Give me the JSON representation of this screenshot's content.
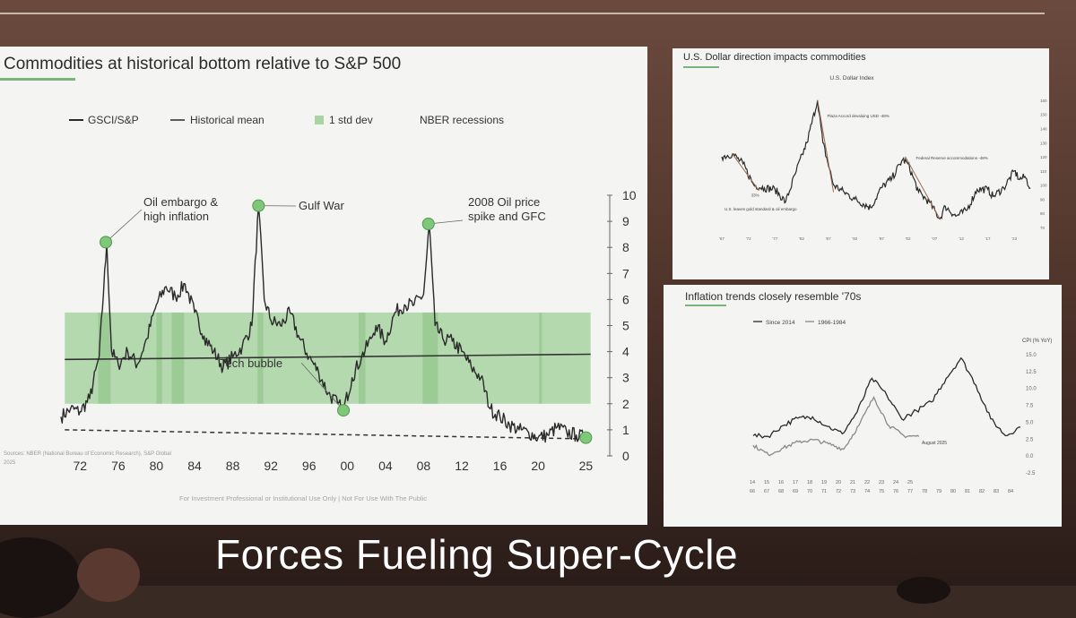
{
  "slide": {
    "caption": "Forces Fueling Super-Cycle"
  },
  "colors": {
    "green_band": "#a9d4a3",
    "marker_green": "#7fc77a",
    "line": "#2a2a2a",
    "accent": "#7bb47a"
  },
  "main_chart": {
    "title": "Commodities at historical bottom relative to S&P 500",
    "footnote_source": "Sources: NBER (National Bureau of Economic Research), S&P Global",
    "footnote_date": "2025",
    "disclaimer": "For Investment Professional or Institutional Use Only | Not For Use With The Public",
    "legend": [
      "GSCI/S&P",
      "Historical mean",
      "1 std dev",
      "NBER recessions"
    ],
    "annotations": [
      {
        "text": "Oil embargo &\nhigh inflation",
        "x": 1974.7,
        "y": 8.2
      },
      {
        "text": "Gulf War",
        "x": 1990.7,
        "y": 9.6
      },
      {
        "text": "2008 Oil price\nspike and GFC",
        "x": 2008.5,
        "y": 8.9
      },
      {
        "text": "Tech bubble",
        "x": 1999.6,
        "y": 1.75
      }
    ],
    "x_ticks": [
      "72",
      "76",
      "80",
      "84",
      "88",
      "92",
      "96",
      "00",
      "04",
      "08",
      "12",
      "16",
      "20",
      "25"
    ],
    "y_ticks": [
      "0",
      "1",
      "2",
      "3",
      "4",
      "5",
      "6",
      "7",
      "8",
      "9",
      "10"
    ]
  },
  "usd_chart": {
    "title": "U.S. Dollar direction impacts commodities",
    "subtitle": "U.S. Dollar Index",
    "annotations": [
      "Plaza Accord devaluing USD -48%",
      "Federal Reserve accommodations -48%",
      "U.S. leaves gold standard & oil embargo",
      "33%"
    ],
    "y_ticks": [
      "160",
      "150",
      "140",
      "130",
      "120",
      "110",
      "100",
      "90",
      "80",
      "70"
    ],
    "x_ticks": [
      "'67",
      "'72",
      "'77",
      "'82",
      "'87",
      "'92",
      "'97",
      "'02",
      "'07",
      "'12",
      "'17",
      "'22"
    ]
  },
  "inflation_chart": {
    "title": "Inflation trends closely resemble '70s",
    "legend": [
      "Since 2014",
      "1966-1984"
    ],
    "y_axis_title": "CPI (% YoY)",
    "y_ticks": [
      "15.0",
      "12.5",
      "10.0",
      "7.5",
      "5.0",
      "2.5",
      "0.0",
      "-2.5"
    ],
    "x_ticks_top": [
      "14",
      "15",
      "16",
      "17",
      "18",
      "19",
      "20",
      "21",
      "22",
      "23",
      "24",
      "25"
    ],
    "x_ticks_bottom": [
      "66",
      "67",
      "68",
      "69",
      "70",
      "71",
      "72",
      "73",
      "74",
      "75",
      "76",
      "77",
      "78",
      "79",
      "80",
      "81",
      "82",
      "83",
      "84"
    ],
    "annotation": "August 2025"
  },
  "chart_data": [
    {
      "type": "line",
      "title": "Commodities at historical bottom relative to S&P 500",
      "series": [
        {
          "name": "GSCI/S&P",
          "points": [
            [
              1970,
              1.5
            ],
            [
              1971,
              1.8
            ],
            [
              1972,
              1.7
            ],
            [
              1973,
              2.2
            ],
            [
              1974,
              3.8
            ],
            [
              1974.8,
              8.2
            ],
            [
              1975.3,
              4.0
            ],
            [
              1976,
              3.5
            ],
            [
              1977,
              4.0
            ],
            [
              1978,
              3.5
            ],
            [
              1979,
              4.5
            ],
            [
              1980,
              5.8
            ],
            [
              1981,
              6.5
            ],
            [
              1982,
              6.1
            ],
            [
              1983,
              6.6
            ],
            [
              1984,
              5.5
            ],
            [
              1985,
              4.6
            ],
            [
              1986,
              4.0
            ],
            [
              1987,
              3.4
            ],
            [
              1988,
              3.8
            ],
            [
              1989,
              4.2
            ],
            [
              1990,
              5.0
            ],
            [
              1990.7,
              9.6
            ],
            [
              1991.3,
              6.0
            ],
            [
              1992,
              5.2
            ],
            [
              1993,
              5.0
            ],
            [
              1994,
              5.5
            ],
            [
              1995,
              4.5
            ],
            [
              1996,
              3.8
            ],
            [
              1997,
              3.2
            ],
            [
              1998,
              2.4
            ],
            [
              1999,
              2.0
            ],
            [
              1999.6,
              1.75
            ],
            [
              2000.5,
              3.0
            ],
            [
              2001.5,
              3.8
            ],
            [
              2002.5,
              4.5
            ],
            [
              2003,
              5.0
            ],
            [
              2004,
              4.4
            ],
            [
              2005,
              5.5
            ],
            [
              2006,
              5.8
            ],
            [
              2007,
              5.8
            ],
            [
              2008,
              6.2
            ],
            [
              2008.6,
              8.9
            ],
            [
              2009.2,
              5.0
            ],
            [
              2010,
              4.5
            ],
            [
              2011,
              4.4
            ],
            [
              2012,
              4.0
            ],
            [
              2013,
              3.4
            ],
            [
              2014,
              3.0
            ],
            [
              2015,
              1.8
            ],
            [
              2016,
              1.5
            ],
            [
              2017,
              1.2
            ],
            [
              2018,
              1.0
            ],
            [
              2019,
              0.9
            ],
            [
              2020,
              0.7
            ],
            [
              2021,
              0.8
            ],
            [
              2022,
              1.1
            ],
            [
              2023,
              0.9
            ],
            [
              2024,
              0.8
            ],
            [
              2025,
              0.7
            ]
          ]
        },
        {
          "name": "Historical mean",
          "value": 3.7
        }
      ],
      "band_1_std_dev": [
        2.0,
        5.5
      ],
      "bottom_reference": 1.0,
      "xlim": [
        1970,
        2026
      ],
      "ylim": [
        0,
        10
      ]
    },
    {
      "type": "line",
      "title": "U.S. Dollar direction impacts commodities",
      "subtitle": "U.S. Dollar Index",
      "series": [
        {
          "name": "U.S. Dollar Index",
          "points": [
            [
              1967,
              120
            ],
            [
              1969,
              122
            ],
            [
              1971,
              115
            ],
            [
              1973,
              100
            ],
            [
              1975,
              98
            ],
            [
              1977,
              97
            ],
            [
              1979,
              88
            ],
            [
              1981,
              110
            ],
            [
              1983,
              130
            ],
            [
              1985,
              160
            ],
            [
              1986,
              130
            ],
            [
              1988,
              100
            ],
            [
              1990,
              95
            ],
            [
              1992,
              90
            ],
            [
              1995,
              84
            ],
            [
              1997,
              98
            ],
            [
              1999,
              105
            ],
            [
              2001,
              118
            ],
            [
              2002,
              115
            ],
            [
              2004,
              95
            ],
            [
              2006,
              88
            ],
            [
              2008,
              76
            ],
            [
              2009,
              85
            ],
            [
              2011,
              78
            ],
            [
              2013,
              82
            ],
            [
              2015,
              97
            ],
            [
              2017,
              97
            ],
            [
              2018,
              92
            ],
            [
              2020,
              98
            ],
            [
              2022,
              110
            ],
            [
              2023,
              104
            ],
            [
              2024,
              106
            ],
            [
              2025,
              98
            ]
          ]
        }
      ],
      "ylim": [
        70,
        165
      ]
    },
    {
      "type": "line",
      "title": "Inflation trends closely resemble '70s",
      "ylabel": "CPI (% YoY)",
      "series": [
        {
          "name": "1966-1984",
          "points": [
            [
              1966,
              3.0
            ],
            [
              1967,
              2.9
            ],
            [
              1968,
              4.5
            ],
            [
              1969,
              5.6
            ],
            [
              1970,
              5.8
            ],
            [
              1971,
              4.4
            ],
            [
              1972,
              3.3
            ],
            [
              1973,
              6.5
            ],
            [
              1974,
              11.5
            ],
            [
              1975,
              9.0
            ],
            [
              1976,
              5.5
            ],
            [
              1977,
              6.7
            ],
            [
              1978,
              8.0
            ],
            [
              1979,
              11.5
            ],
            [
              1980,
              14.5
            ],
            [
              1981,
              10.5
            ],
            [
              1982,
              5.5
            ],
            [
              1983,
              3.0
            ],
            [
              1984,
              4.3
            ]
          ]
        },
        {
          "name": "Since 2014",
          "points": [
            [
              2014,
              1.6
            ],
            [
              2015,
              0.2
            ],
            [
              2016,
              1.2
            ],
            [
              2017,
              2.1
            ],
            [
              2018,
              2.4
            ],
            [
              2019,
              1.8
            ],
            [
              2020,
              1.0
            ],
            [
              2021,
              4.5
            ],
            [
              2022,
              8.7
            ],
            [
              2023,
              4.5
            ],
            [
              2024,
              3.0
            ],
            [
              2025,
              2.9
            ]
          ]
        }
      ],
      "ylim": [
        -2.5,
        15
      ]
    }
  ]
}
